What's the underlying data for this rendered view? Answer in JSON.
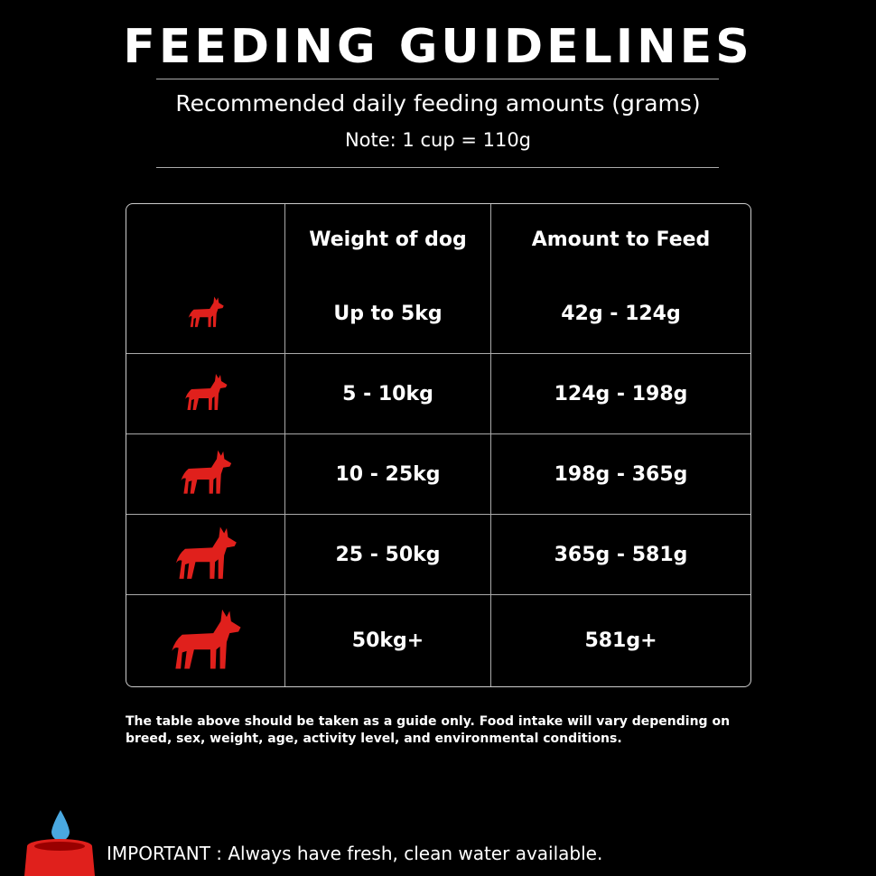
{
  "header": {
    "title": "FEEDING GUIDELINES",
    "subtitle": "Recommended daily feeding amounts (grams)",
    "note": "Note: 1 cup = 110g"
  },
  "table": {
    "columns": [
      "Weight of dog",
      "Amount to Feed"
    ],
    "rows": [
      [
        "Up to 5kg",
        "42g - 124g"
      ],
      [
        "5 - 10kg",
        "124g - 198g"
      ],
      [
        "10 - 25kg",
        "198g - 365g"
      ],
      [
        "25 - 50kg",
        "365g - 581g"
      ],
      [
        "50kg+",
        "581g+"
      ]
    ]
  },
  "footnote": "The table above should be taken as a guide only. Food intake will vary depending on breed, sex, weight, age, activity level, and environmental conditions.",
  "important": "IMPORTANT : Always have fresh, clean water available."
}
